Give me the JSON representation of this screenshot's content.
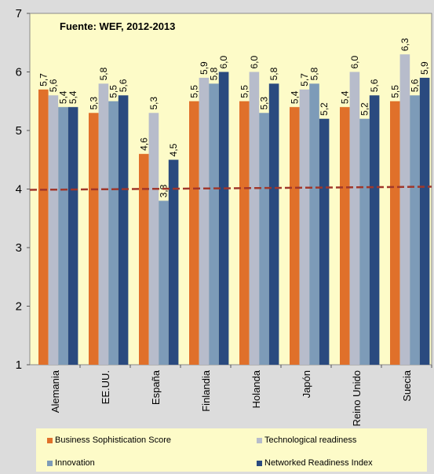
{
  "chart_data": {
    "type": "bar",
    "title": "Fuente: WEF, 2012-2013",
    "categories": [
      "Alemania",
      "EE.UU.",
      "España",
      "Finlandia",
      "Holanda",
      "Japón",
      "Reino Unido",
      "Suecia"
    ],
    "series": [
      {
        "name": "Business Sophistication Score",
        "color": "#e0702a",
        "values": [
          5.7,
          5.3,
          4.6,
          5.5,
          5.5,
          5.4,
          5.4,
          5.5
        ]
      },
      {
        "name": "Technological readiness",
        "color": "#b7bccb",
        "values": [
          5.6,
          5.8,
          5.3,
          5.9,
          6.0,
          5.7,
          6.0,
          6.3
        ]
      },
      {
        "name": "Innovation",
        "color": "#7d9bb8",
        "values": [
          5.4,
          5.5,
          3.8,
          5.8,
          5.3,
          5.8,
          5.2,
          5.6
        ]
      },
      {
        "name": "Networked Readiness Index",
        "color": "#2a4a7f",
        "values": [
          5.4,
          5.6,
          4.5,
          6.0,
          5.8,
          5.2,
          5.6,
          5.9
        ]
      }
    ],
    "data_labels": [
      [
        "5,7",
        "5,6",
        "5,4",
        "5,4"
      ],
      [
        "5,3",
        "5,8",
        "5,5",
        "5,6"
      ],
      [
        "4,6",
        "5,3",
        "3,8",
        "4,5"
      ],
      [
        "5,5",
        "5,9",
        "5,8",
        "6,0"
      ],
      [
        "5,5",
        "6,0",
        "5,3",
        "5,8"
      ],
      [
        "5,4",
        "5,7",
        "5,8",
        "5,2"
      ],
      [
        "5,4",
        "6,0",
        "5,2",
        "5,6"
      ],
      [
        "5,5",
        "6,3",
        "5,6",
        "5,9"
      ]
    ],
    "reference_line": {
      "value": 4.0,
      "color": "#a0372b",
      "style": "dashed"
    },
    "ylim": [
      1,
      7
    ],
    "yticks": [
      1,
      2,
      3,
      4,
      5,
      6,
      7
    ],
    "grid": false,
    "legend_position": "bottom",
    "plot_background": "#fdfbc8"
  }
}
